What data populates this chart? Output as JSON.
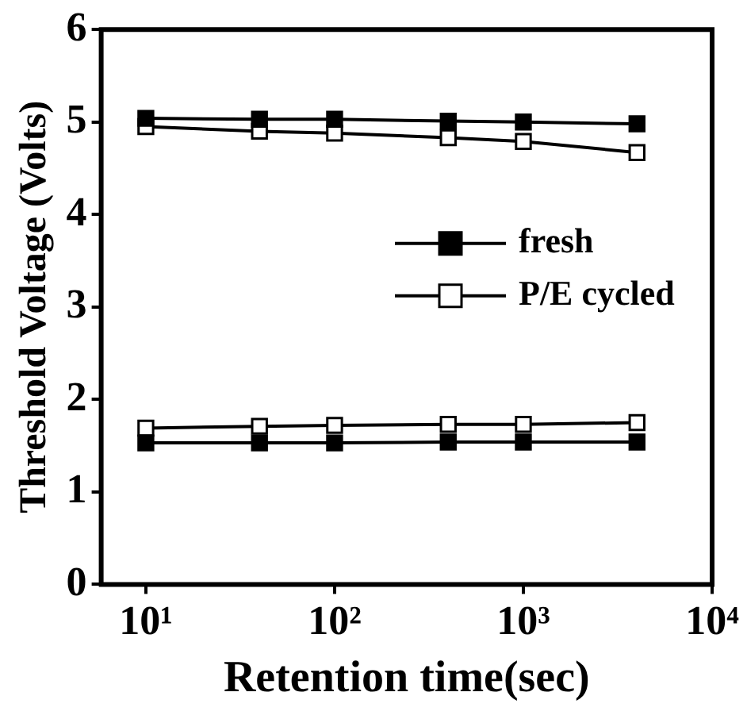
{
  "chart_data": {
    "type": "line",
    "xlabel": "Retention time(sec)",
    "ylabel": "Threshold Voltage (Volts)",
    "log": "x",
    "xlim": [
      5.8,
      10000
    ],
    "xticks": [
      {
        "value": 10,
        "label": "10¹"
      },
      {
        "value": 100,
        "label": "10²"
      },
      {
        "value": 1000,
        "label": "10³"
      },
      {
        "value": 10000,
        "label": "10⁴"
      }
    ],
    "ylim": [
      0,
      6
    ],
    "yticks": [
      0,
      1,
      2,
      3,
      4,
      5,
      6
    ],
    "grid": false,
    "legend": "right",
    "line_style": "solid",
    "series": [
      {
        "name": "fresh",
        "color": "#000000",
        "marker": "square",
        "x": [
          10,
          40,
          100,
          400,
          1000,
          4000
        ],
        "values": [
          5.04,
          5.03,
          5.03,
          5.01,
          5.0,
          4.98
        ]
      },
      {
        "name": "P/E cycled",
        "color": "#000000",
        "marker": "square-open",
        "x": [
          10,
          40,
          100,
          400,
          1000,
          4000
        ],
        "values": [
          4.95,
          4.9,
          4.88,
          4.83,
          4.79,
          4.67
        ]
      },
      {
        "color": "#000000",
        "marker": "square",
        "x": [
          10,
          40,
          100,
          400,
          1000,
          4000
        ],
        "values": [
          1.53,
          1.53,
          1.53,
          1.54,
          1.54,
          1.54
        ]
      },
      {
        "color": "#000000",
        "marker": "square-open",
        "x": [
          10,
          40,
          100,
          400,
          1000,
          4000
        ],
        "values": [
          1.69,
          1.71,
          1.72,
          1.73,
          1.73,
          1.75
        ]
      }
    ]
  }
}
